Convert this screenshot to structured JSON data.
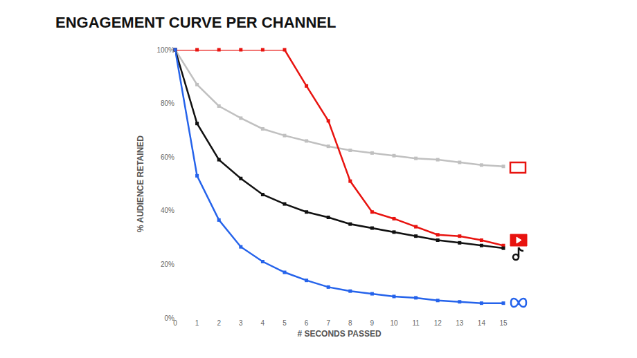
{
  "chart_data": {
    "type": "line",
    "title": "ENGAGEMENT CURVE PER CHANNEL",
    "x_label": "# SECONDS PASSED",
    "y_label": "% AUDIENCE RETAINED",
    "x": [
      0,
      1,
      2,
      3,
      4,
      5,
      6,
      7,
      8,
      9,
      10,
      11,
      12,
      13,
      14,
      15
    ],
    "series": [
      {
        "color": "#c0c0c0",
        "values": [
          100,
          87,
          79,
          74.5,
          70.5,
          68,
          66,
          64,
          62.5,
          61.5,
          60.5,
          59.5,
          59,
          58,
          57,
          56.5
        ]
      },
      {
        "color": "#e8130f",
        "values": [
          100,
          100,
          100,
          100,
          100,
          100,
          86.5,
          73.5,
          51,
          39.5,
          37,
          34,
          31,
          30.5,
          29,
          27
        ]
      },
      {
        "color": "#111111",
        "values": [
          100,
          72.5,
          59,
          52,
          46,
          42.5,
          39.5,
          37.5,
          35,
          33.5,
          32,
          30.5,
          29,
          28,
          27,
          26
        ]
      },
      {
        "color": "#2563eb",
        "values": [
          100,
          53,
          36.5,
          26.5,
          21,
          17,
          14,
          11.5,
          10,
          9,
          8,
          7.5,
          6.5,
          6,
          5.5,
          5.5
        ]
      }
    ],
    "xlim": [
      0,
      15
    ],
    "xticks": [
      0,
      1,
      2,
      3,
      4,
      5,
      6,
      7,
      8,
      9,
      10,
      11,
      12,
      13,
      14,
      15
    ],
    "ylim": [
      0,
      100
    ],
    "yticks": [
      {
        "value": 0,
        "label": "0%"
      },
      {
        "value": 20,
        "label": "20%"
      },
      {
        "value": 40,
        "label": "40%"
      },
      {
        "value": 60,
        "label": "60%"
      },
      {
        "value": 80,
        "label": "80%"
      },
      {
        "value": 100,
        "label": "100%"
      }
    ],
    "grid": false,
    "marker": "square",
    "line_style": "solid"
  }
}
